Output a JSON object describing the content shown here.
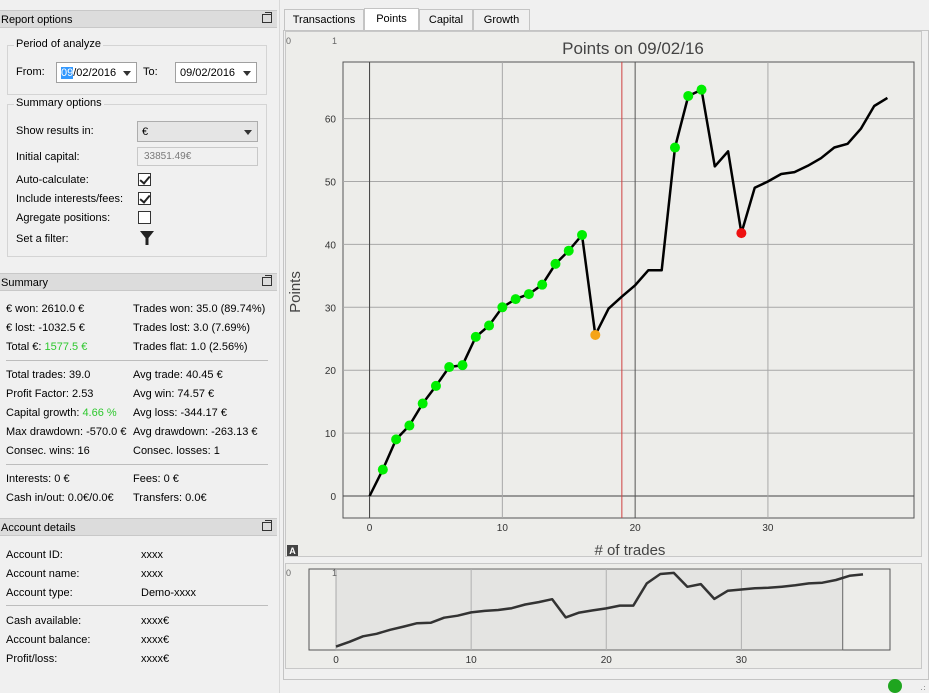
{
  "report_options": {
    "header": "Report options",
    "period": {
      "title": "Period of analyze",
      "from_label": "From:",
      "from_value_sel": "09",
      "from_value_rest": "/02/2016",
      "to_label": "To:",
      "to_value": "09/02/2016"
    },
    "summary_options": {
      "title": "Summary options",
      "show_results_label": "Show results in:",
      "show_results_value": "€",
      "initial_capital_label": "Initial capital:",
      "initial_capital_value": "33851.49€",
      "auto_calculate_label": "Auto-calculate:",
      "auto_calculate_checked": true,
      "include_fees_label": "Include interests/fees:",
      "include_fees_checked": true,
      "aggregate_label": "Agregate positions:",
      "aggregate_checked": false,
      "filter_label": "Set a filter:"
    }
  },
  "summary": {
    "header": "Summary",
    "won": "€ won: 2610.0 €",
    "lost": "€ lost: -1032.5 €",
    "total_label": "Total €: ",
    "total_value": "1577.5 €",
    "trades_won": "Trades won: 35.0 (89.74%)",
    "trades_lost": "Trades lost: 3.0 (7.69%)",
    "trades_flat": "Trades flat: 1.0 (2.56%)",
    "total_trades": "Total trades: 39.0",
    "profit_factor": "Profit Factor: 2.53",
    "capital_growth_label": "Capital growth: ",
    "capital_growth_value": "4.66 %",
    "max_drawdown": "Max drawdown: -570.0 €",
    "consec_wins": "Consec. wins: 16",
    "avg_trade": "Avg trade: 40.45 €",
    "avg_win": "Avg win: 74.57 €",
    "avg_loss": "Avg loss: -344.17 €",
    "avg_drawdown": "Avg drawdown: -263.13 €",
    "consec_losses": "Consec. losses: 1",
    "interests": "Interests: 0 €",
    "fees": "Fees: 0 €",
    "cash_inout": "Cash in/out: 0.0€/0.0€",
    "transfers": "Transfers: 0.0€"
  },
  "account": {
    "header": "Account details",
    "rows": [
      {
        "label": "Account ID:",
        "value": "xxxx"
      },
      {
        "label": "Account name:",
        "value": "xxxx"
      },
      {
        "label": "Account type:",
        "value": "Demo-xxxx"
      },
      {
        "label": "Cash available:",
        "value": "xxxx€"
      },
      {
        "label": "Account balance:",
        "value": "xxxx€"
      },
      {
        "label": "Profit/loss:",
        "value": "xxxx€"
      }
    ]
  },
  "tabs": [
    "Transactions",
    "Points",
    "Capital",
    "Growth"
  ],
  "active_tab": "Points",
  "colors": {
    "win_marker": "#00ee00",
    "loss_marker": "#ee1111",
    "flat_marker": "#f5a418",
    "cursor_line": "#d04040",
    "positive_text": "#2ec82e",
    "status": "#1fa51f"
  },
  "chart_data": {
    "type": "line",
    "title": "Points on 09/02/16",
    "xlabel": "# of trades",
    "ylabel": "Points",
    "xlim": [
      -2,
      41
    ],
    "ylim": [
      -3.5,
      69
    ],
    "x_ticks": [
      0,
      10,
      20,
      30
    ],
    "y_ticks": [
      0,
      10,
      20,
      30,
      40,
      50,
      60
    ],
    "corner_labels": [
      "0",
      "1"
    ],
    "axis_badge": "A",
    "cursor_x": 19,
    "grid": true,
    "x": [
      0,
      1,
      2,
      3,
      4,
      5,
      6,
      7,
      8,
      9,
      10,
      11,
      12,
      13,
      14,
      15,
      16,
      17,
      18,
      19,
      20,
      21,
      22,
      23,
      24,
      25,
      26,
      27,
      28,
      29,
      30,
      31,
      32,
      33,
      34,
      35,
      36,
      37,
      38,
      39
    ],
    "values": [
      0,
      4.2,
      9,
      11.2,
      14.7,
      17.5,
      20.5,
      20.8,
      25.3,
      27.1,
      30,
      31.3,
      32.1,
      33.6,
      36.9,
      39,
      41.5,
      25.6,
      29.8,
      31.7,
      33.5,
      35.9,
      35.9,
      55.4,
      63.6,
      64.6,
      52.4,
      54.8,
      41.8,
      49,
      50,
      51.2,
      51.5,
      52.5,
      53.7,
      55.4,
      56,
      58.4,
      62,
      63.3
    ],
    "markers": {
      "win": [
        1,
        2,
        3,
        4,
        5,
        6,
        7,
        8,
        9,
        10,
        11,
        12,
        13,
        14,
        15,
        16,
        23,
        24,
        25
      ],
      "loss": [
        28
      ],
      "flat": [
        17
      ]
    },
    "overview": {
      "x_ticks": [
        0,
        10,
        20,
        30
      ],
      "corner_labels": [
        "0",
        "1"
      ]
    }
  }
}
